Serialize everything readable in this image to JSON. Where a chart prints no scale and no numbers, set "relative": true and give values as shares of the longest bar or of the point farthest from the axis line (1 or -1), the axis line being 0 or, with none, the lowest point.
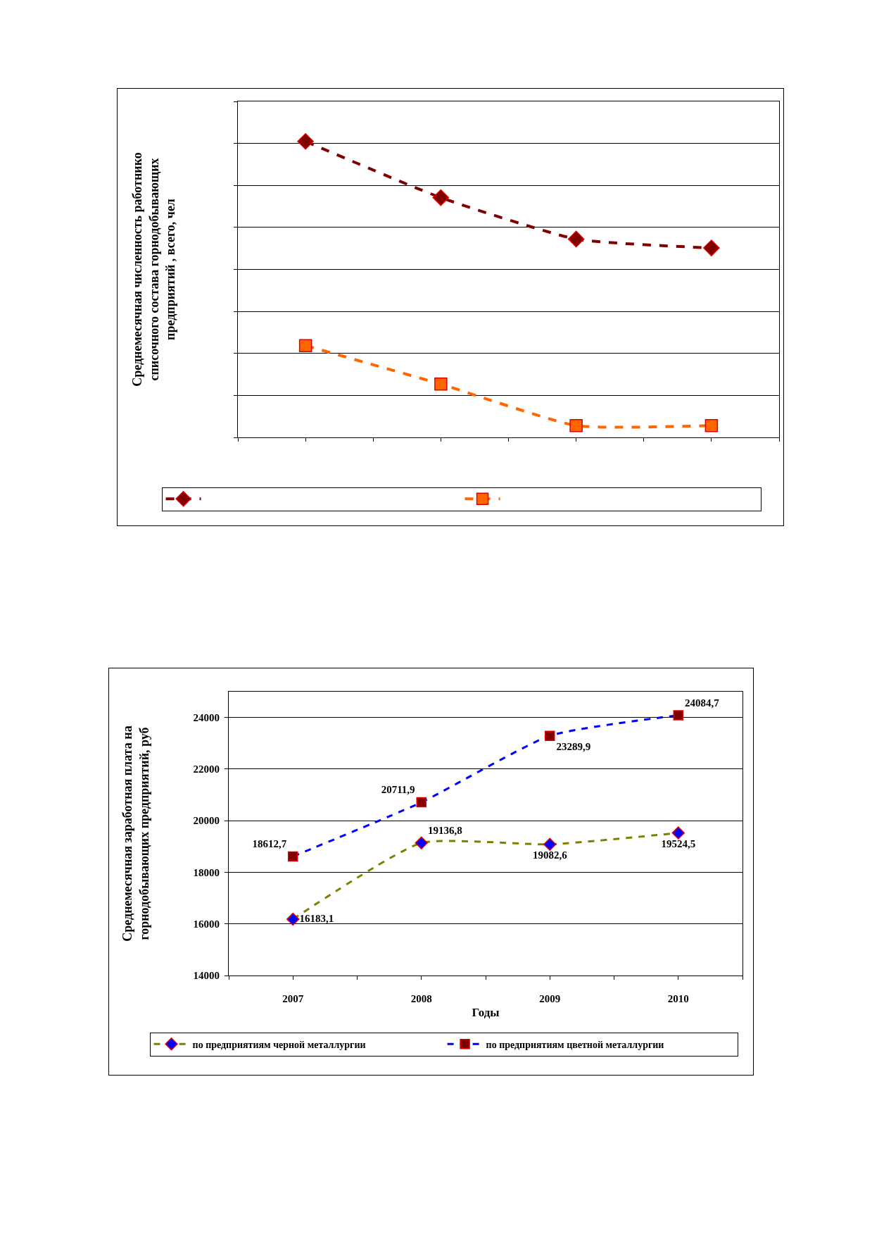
{
  "chart_data": [
    {
      "type": "line",
      "ylabel": "Среднемесячная численность работнико\nсписочного состава горнодобывающих\nпредприятий , всего, чел",
      "categories": [
        null,
        null,
        null,
        null
      ],
      "relative": true,
      "series": [
        {
          "color": "#800000",
          "marker": "diamond",
          "values": [
            1,
            0.81,
            0.67,
            0.64
          ]
        },
        {
          "color": "#ff6600",
          "marker": "square",
          "values": [
            0.31,
            0.18,
            0.04,
            0.04
          ]
        }
      ],
      "grid": "y",
      "legend": "bottom",
      "line_style": "dashed"
    },
    {
      "type": "line",
      "xlabel": "Годы",
      "ylabel": "Среднемесячная заработная плата на\nгорнодобывающих предприятий, руб",
      "categories": [
        "2007",
        "2008",
        "2009",
        "2010"
      ],
      "series": [
        {
          "name": "по предприятиям черной металлургии",
          "color": "#808000",
          "colors": [
            "#0000ff",
            "#0000ff",
            "#0000ff",
            "#0000ff"
          ],
          "marker": "diamond",
          "values": [
            16183.1,
            19136.8,
            19082.6,
            19524.5
          ],
          "value_labels": [
            "16183,1",
            "19136,8",
            "19082,6",
            "19524,5"
          ]
        },
        {
          "name": "по предприятиям цветной металлургии",
          "color": "#0000ff",
          "colors": [
            "#800000",
            "#800000",
            "#800000",
            "#800000"
          ],
          "marker": "square",
          "values": [
            18612.7,
            20711.9,
            23289.9,
            24084.7
          ],
          "value_labels": [
            "18612,7",
            "20711,9",
            "23289,9",
            "24084,7"
          ]
        }
      ],
      "ylim": [
        14000,
        25000
      ],
      "yticks": [
        14000,
        16000,
        18000,
        20000,
        22000,
        24000
      ],
      "grid": "y",
      "legend": "bottom",
      "line_style": "dashed"
    }
  ]
}
